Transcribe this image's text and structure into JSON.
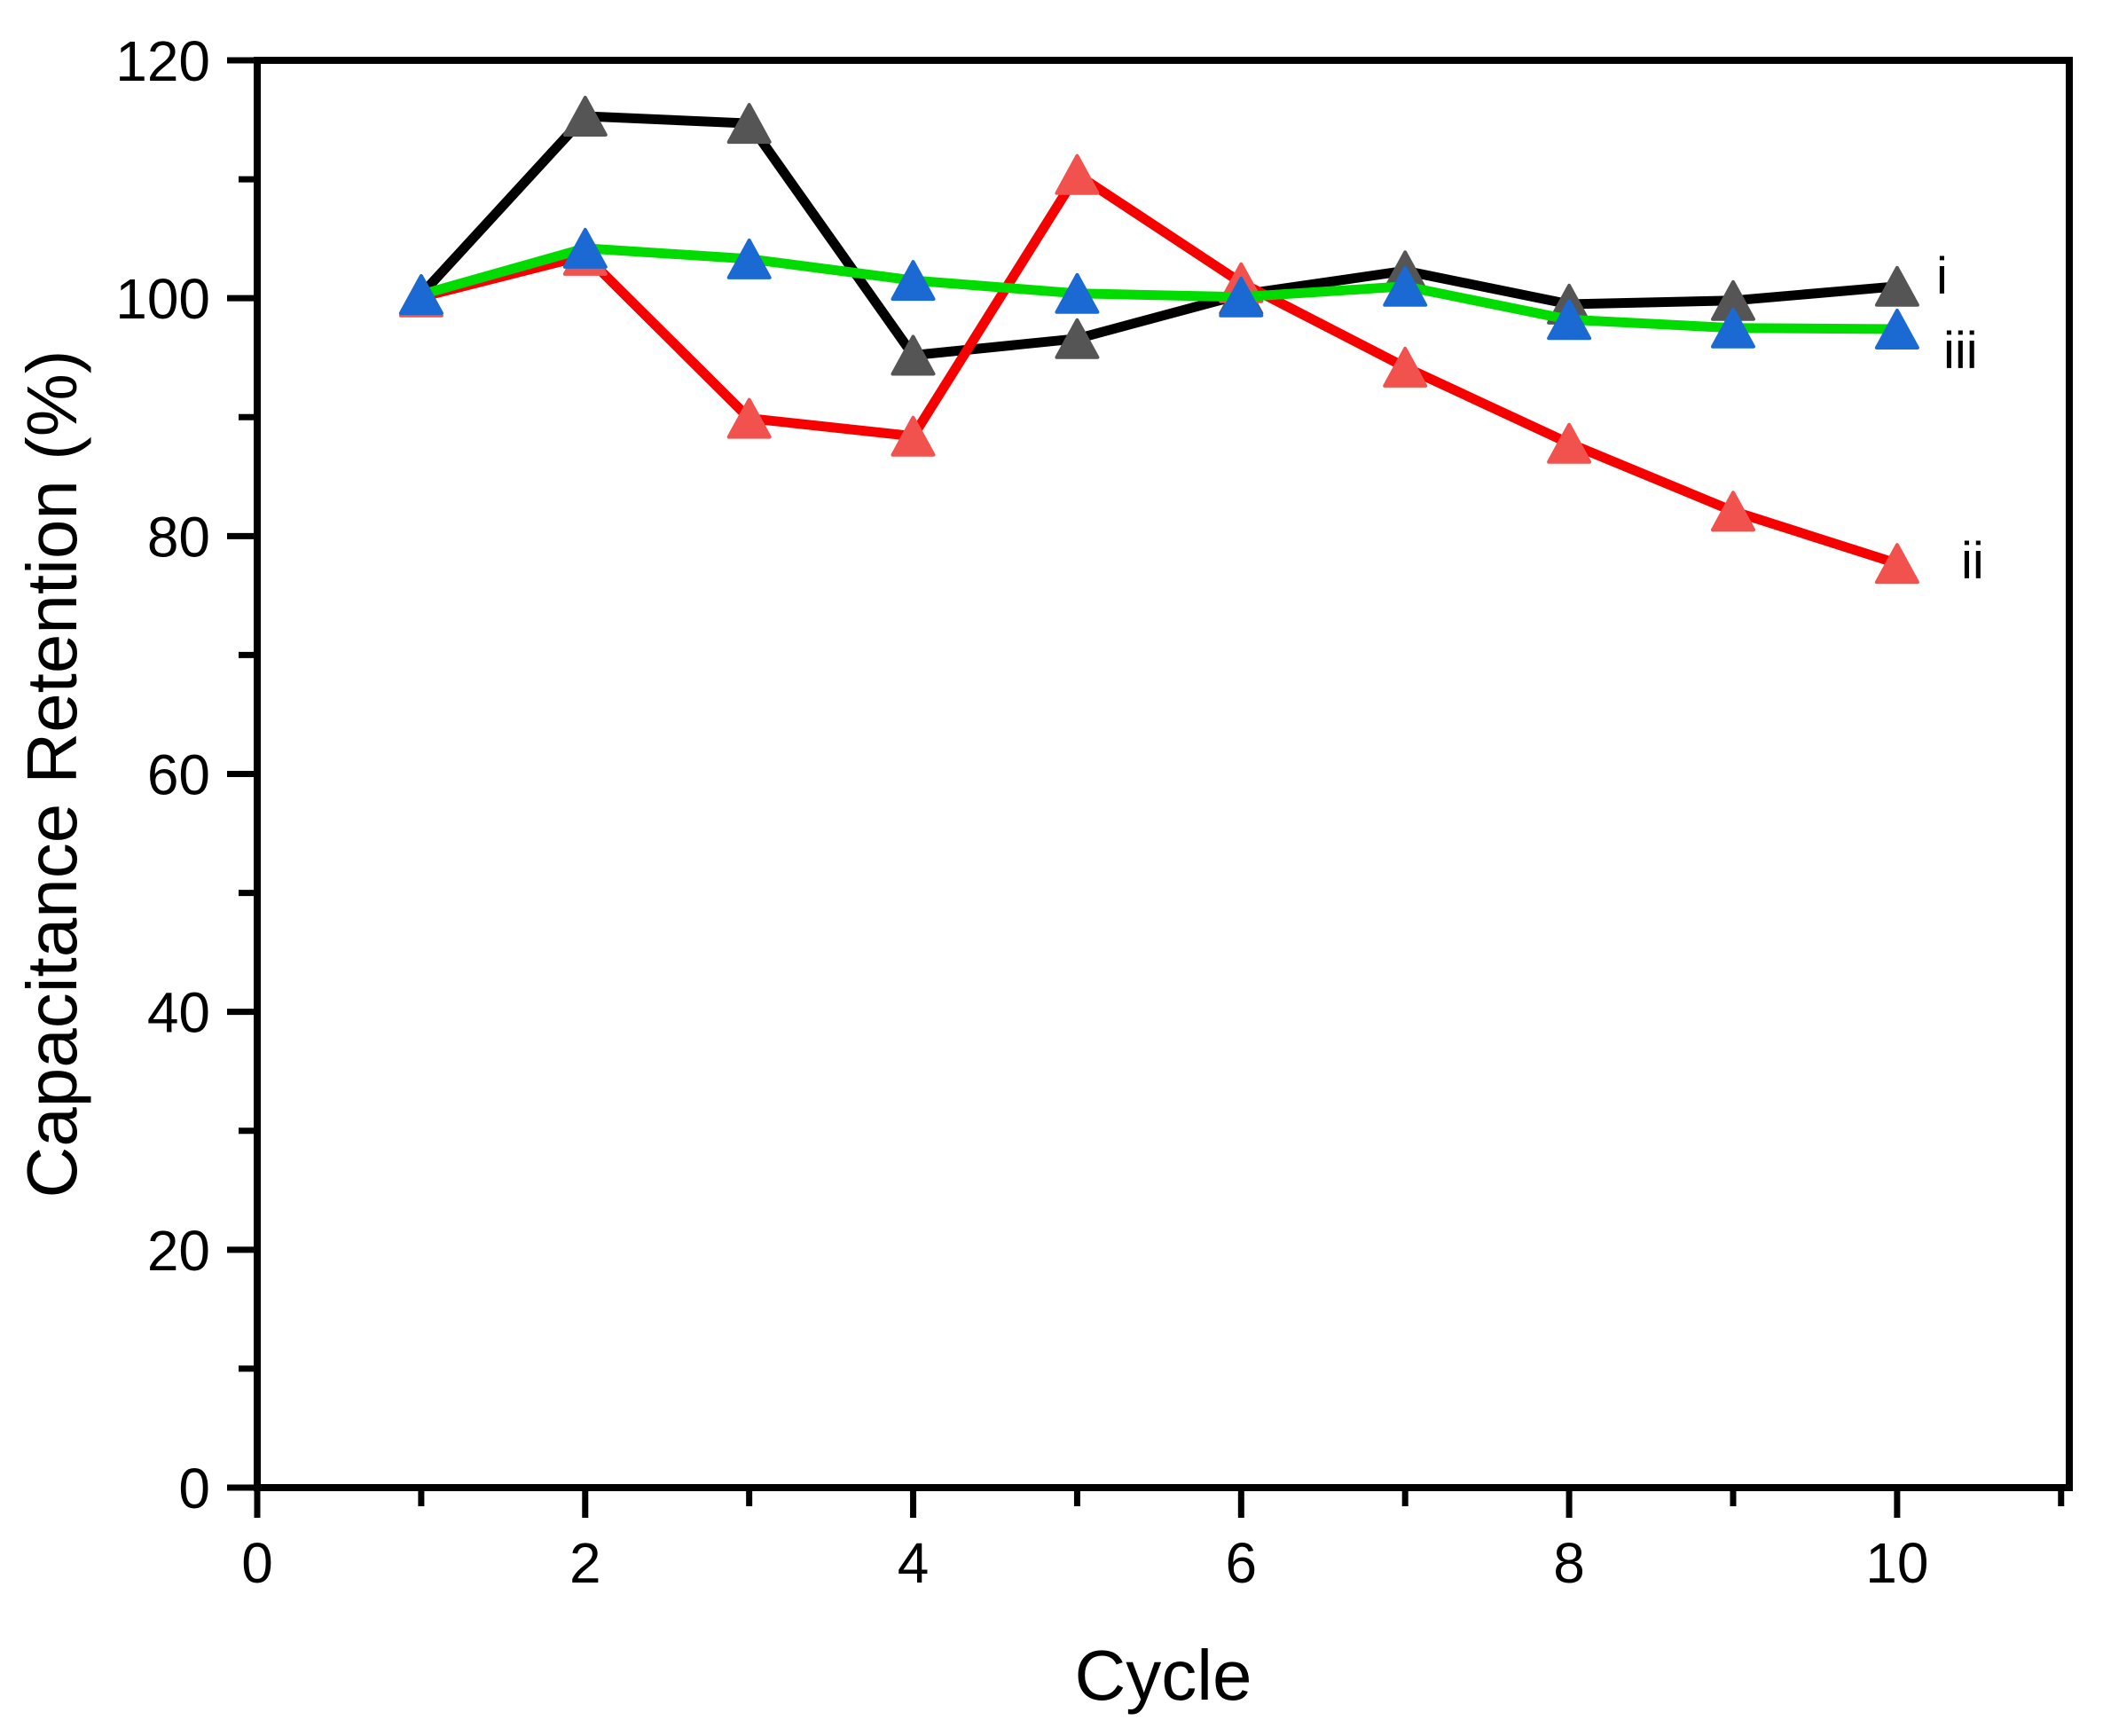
{
  "chart_data": {
    "type": "line",
    "title": "",
    "xlabel": "Cycle",
    "ylabel": "Capacitance Retention (%)",
    "x": [
      1,
      2,
      3,
      4,
      5,
      6,
      7,
      8,
      9,
      10
    ],
    "series": [
      {
        "name": "i",
        "label": "i",
        "line_color": "#000000",
        "marker_color": "#555555",
        "marker": "triangle-up",
        "values": [
          100.3,
          115.3,
          114.7,
          95.2,
          96.6,
          100.3,
          102.3,
          99.5,
          99.8,
          101.0
        ]
      },
      {
        "name": "ii",
        "label": "ii",
        "line_color": "#F60000",
        "marker_color": "#F2524D",
        "marker": "triangle-up",
        "values": [
          100.1,
          103.6,
          89.9,
          88.4,
          110.4,
          101.3,
          94.2,
          87.8,
          82.1,
          77.7
        ]
      },
      {
        "name": "iii",
        "label": "iii",
        "line_color": "#00DC00",
        "marker_color": "#1B69D2",
        "marker": "triangle-up",
        "values": [
          100.3,
          104.2,
          103.3,
          101.5,
          100.4,
          100.1,
          101.0,
          98.2,
          97.5,
          97.4
        ]
      }
    ],
    "xlim": [
      0,
      11.05
    ],
    "ylim": [
      0,
      120
    ],
    "xticks": {
      "major": [
        0,
        2,
        4,
        6,
        8,
        10
      ],
      "minor": [
        1,
        3,
        5,
        7,
        9,
        11
      ]
    },
    "yticks": {
      "major": [
        0,
        20,
        40,
        60,
        80,
        100,
        120
      ],
      "minor": [
        10,
        30,
        50,
        70,
        90,
        110
      ]
    },
    "xtick_labels": [
      "0",
      "2",
      "4",
      "6",
      "8",
      "10"
    ],
    "ytick_labels": [
      "0",
      "20",
      "40",
      "60",
      "80",
      "100",
      "120"
    ],
    "grid": false,
    "legend_position": "inline-end-of-series",
    "frame_color": "#000000",
    "background_color": "#ffffff"
  }
}
